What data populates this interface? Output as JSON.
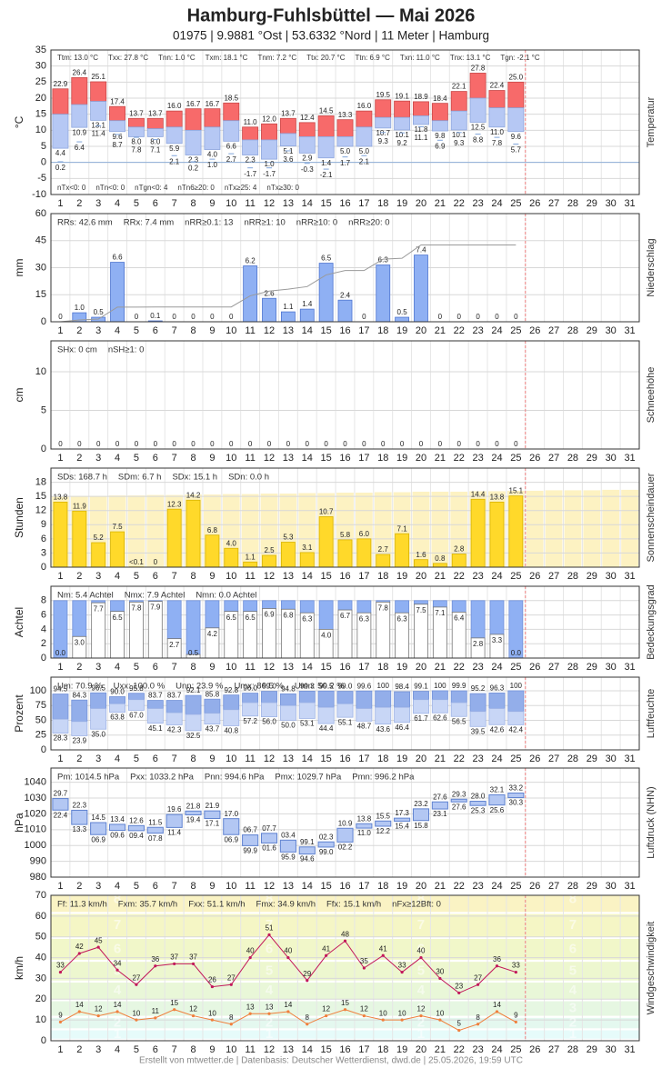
{
  "header": {
    "title": "Hamburg-Fuhlsbüttel  —  Mai 2026",
    "subtitle": "01975  |  9.9881 °Ost  |  53.6332 °Nord  |  11 Meter  |  Hamburg"
  },
  "footer": "Erstellt von mtwetter.de | Datenbasis: Deutscher Wetterdienst, dwd.de | 25.05.2026, 19:59 UTC",
  "chart_data": [
    {
      "type": "range",
      "ylabel": "°C",
      "side_label": "Temperatur",
      "categories": [
        "1",
        "2",
        "3",
        "4",
        "5",
        "6",
        "7",
        "8",
        "9",
        "10",
        "11",
        "12",
        "13",
        "14",
        "15",
        "16",
        "17",
        "18",
        "19",
        "20",
        "21",
        "22",
        "23",
        "24",
        "25",
        "26",
        "27",
        "28",
        "29",
        "30",
        "31"
      ],
      "ylim": [
        -10,
        35
      ],
      "yticks": [
        -10,
        -5,
        0,
        5,
        10,
        15,
        20,
        25,
        30,
        35
      ],
      "grid": true,
      "zero_line": "#8fb0d8",
      "summary": [
        "Ttm: 13.0 °C",
        "Txx: 27.8 °C",
        "Tnn: 1.0 °C",
        "Txm: 18.1 °C",
        "Tnm: 7.2 °C",
        "Ttx: 20.7 °C",
        "Ttn: 6.9 °C",
        "Txn: 11.0 °C",
        "Tnx: 13.1 °C",
        "Tgn: -2.1 °C"
      ],
      "summary_bottom": [
        "nTx<0: 0",
        "nTn<0: 0",
        "nTgn<0: 4",
        "nTn6≥20: 0",
        "nTx≥25: 4",
        "nTx≥30: 0"
      ],
      "max": {
        "color": "#f76a6a",
        "edge_color": "#c94848",
        "label_color": "#d04a4a",
        "values": [
          22.9,
          26.4,
          25.1,
          17.4,
          13.7,
          13.7,
          16.0,
          16.7,
          16.7,
          18.5,
          11.0,
          12.0,
          13.7,
          12.4,
          14.5,
          13.3,
          16.0,
          19.5,
          19.1,
          18.9,
          18.4,
          22.1,
          27.8,
          22.4,
          25.0
        ],
        "value_labels": [
          "22.9",
          "26.4",
          "25.1",
          "17.4",
          "13.7",
          "13.7",
          "16.0",
          "16.7",
          "16.7",
          "18.5",
          "11.0",
          "12.0",
          "13.7",
          "12.4",
          "14.5",
          "13.3",
          "16.0",
          "19.5",
          "19.1",
          "18.9",
          "18.4",
          "22.1",
          "27.8",
          "22.4",
          "25.0"
        ]
      },
      "mean": {
        "color": "#b6c8f4",
        "edge_color": "#8ea6dd",
        "values": [
          15,
          18,
          19,
          13,
          11,
          10.5,
          11,
          10,
          11,
          13,
          7,
          7,
          9,
          8,
          8,
          8,
          11,
          14,
          14,
          14.5,
          13,
          16,
          20,
          17,
          17
        ]
      },
      "min": {
        "label_color": "#4f73bd",
        "values": [
          4.4,
          10.9,
          13.1,
          9.6,
          8.0,
          8.0,
          5.9,
          2.3,
          4.0,
          6.6,
          2.3,
          1.0,
          5.1,
          2.9,
          1.4,
          5.0,
          5.0,
          10.7,
          10.1,
          11.8,
          9.8,
          10.1,
          12.5,
          11.0,
          9.6
        ],
        "value_labels": [
          "4.4",
          "10.9",
          "13.1",
          "9.6",
          "8.0",
          "8.0",
          "5.9",
          "2.3",
          "4.0",
          "6.6",
          "2.3",
          "1.0",
          "5.1",
          "2.9",
          "1.4",
          "5.0",
          "5.0",
          "10.7",
          "10.1",
          "11.8",
          "9.8",
          "10.1",
          "12.5",
          "11.0",
          "9.6"
        ]
      },
      "ground_min": {
        "color": "#7ea3d9",
        "values": [
          0.2,
          6.4,
          11.4,
          8.7,
          7.8,
          7.1,
          2.1,
          0.2,
          1.0,
          2.7,
          -1.7,
          -1.7,
          3.6,
          -0.3,
          -2.1,
          1.7,
          2.1,
          9.3,
          9.2,
          11.1,
          6.9,
          9.3,
          8.8,
          7.8,
          5.7
        ],
        "value_labels": [
          "0.2",
          "6.4",
          "11.4",
          "8.7",
          "7.8",
          "7.1",
          "2.1",
          "0.2",
          "1.0",
          "2.7",
          "-1.7",
          "-1.7",
          "3.6",
          "-0.3",
          "-2.1",
          "1.7",
          "2.1",
          "9.3",
          "9.2",
          "11.1",
          "6.9",
          "9.3",
          "8.8",
          "7.8",
          "5.7"
        ]
      }
    },
    {
      "type": "bar",
      "ylabel": "mm",
      "side_label": "Niederschlag",
      "ylim": [
        0,
        60
      ],
      "yticks": [
        0,
        15,
        30,
        45,
        60
      ],
      "y2lim": [
        0,
        12
      ],
      "grid": true,
      "summary": [
        "RRs: 42.6 mm",
        "RRx: 7.4 mm",
        "nRR≥0.1: 13",
        "nRR≥1: 10",
        "nRR≥10: 0",
        "nRR≥20: 0"
      ],
      "color": "#8fb0f3",
      "edge_color": "#4d74d0",
      "label_color": "#5a7fc8",
      "values": [
        0,
        1.0,
        0.5,
        6.6,
        0,
        0.1,
        0,
        0,
        0,
        0,
        6.2,
        2.6,
        1.1,
        1.4,
        6.5,
        2.4,
        0,
        6.3,
        0.5,
        7.4,
        0,
        0,
        0,
        0,
        0
      ],
      "value_labels": [
        "0",
        "1.0",
        "0.5",
        "6.6",
        "0",
        "0.1",
        "0",
        "0",
        "0",
        "0",
        "6.2",
        "2.6",
        "1.1",
        "1.4",
        "6.5",
        "2.4",
        "0",
        "6.3",
        "0.5",
        "7.4",
        "0",
        "0",
        "0",
        "0",
        "0"
      ],
      "cumulative": {
        "color": "#9a9a9a",
        "values": [
          0,
          1.0,
          1.5,
          8.1,
          8.1,
          8.2,
          8.2,
          8.2,
          8.2,
          8.2,
          14.4,
          17.0,
          18.1,
          19.5,
          26.0,
          28.4,
          28.4,
          34.7,
          35.2,
          42.6,
          42.6,
          42.6,
          42.6,
          42.6,
          42.6
        ]
      }
    },
    {
      "type": "bar",
      "ylabel": "cm",
      "side_label": "Schneehöhe",
      "ylim": [
        0,
        14
      ],
      "yticks": [
        0,
        5,
        10
      ],
      "grid": true,
      "summary": [
        "SHx: 0 cm",
        "nSH≥1: 0"
      ],
      "color": "#c8d4ee",
      "edge_color": "#8ea6dd",
      "label_color": "#999999",
      "values": [
        0,
        0,
        0,
        0,
        0,
        0,
        0,
        0,
        0,
        0,
        0,
        0,
        0,
        0,
        0,
        0,
        0,
        0,
        0,
        0,
        0,
        0,
        0,
        0,
        0
      ]
    },
    {
      "type": "bar",
      "ylabel": "Stunden",
      "side_label": "Sonnenscheindauer",
      "ylim": [
        0,
        21
      ],
      "yticks": [
        0,
        3,
        6,
        9,
        12,
        15,
        18
      ],
      "grid": true,
      "summary": [
        "SDs: 168.7 h",
        "SDm: 6.7 h",
        "SDx: 15.1 h",
        "SDn: 0.0 h"
      ],
      "color": "#ffd92a",
      "edge_color": "#d9b400",
      "label_color": "#9a7b00",
      "values": [
        13.8,
        11.9,
        5.2,
        7.5,
        0.05,
        0,
        12.3,
        14.2,
        6.8,
        4.0,
        1.1,
        2.5,
        5.3,
        3.1,
        10.7,
        5.8,
        6.0,
        2.7,
        7.1,
        1.6,
        0.8,
        2.8,
        14.4,
        13.8,
        15.1
      ],
      "value_labels": [
        "13.8",
        "11.9",
        "5.2",
        "7.5",
        "<0.1",
        "0",
        "12.3",
        "14.2",
        "6.8",
        "4.0",
        "1.1",
        "2.5",
        "5.3",
        "3.1",
        "10.7",
        "5.8",
        "6.0",
        "2.7",
        "7.1",
        "1.6",
        "0.8",
        "2.8",
        "14.4",
        "13.8",
        "15.1"
      ],
      "possible": {
        "color": "#fdf2c2",
        "values": [
          15.0,
          15.1,
          15.1,
          15.2,
          15.2,
          15.3,
          15.3,
          15.4,
          15.4,
          15.5,
          15.5,
          15.6,
          15.6,
          15.7,
          15.7,
          15.8,
          15.8,
          15.9,
          15.9,
          16.0,
          16.0,
          16.0,
          16.1,
          16.1,
          16.2,
          16.2,
          16.3,
          16.3,
          16.3,
          16.4,
          16.4
        ]
      }
    },
    {
      "type": "bar",
      "ylabel": "Achtel",
      "side_label": "Bedeckungsgrad",
      "ylim": [
        0,
        10
      ],
      "yticks": [
        0,
        2,
        4,
        6,
        8
      ],
      "grid": true,
      "summary": [
        "Nm: 5.4 Achtel",
        "Nmx: 7.9 Achtel",
        "Nmn: 0.0 Achtel"
      ],
      "color": "#ffffff",
      "edge_color": "#777777",
      "sky_color": "#8fb0f3",
      "label_color": "#333333",
      "values": [
        0.0,
        3.0,
        7.7,
        6.5,
        7.8,
        7.9,
        2.7,
        0.5,
        4.2,
        6.5,
        6.5,
        6.9,
        6.8,
        6.3,
        4.0,
        6.7,
        6.3,
        7.8,
        6.3,
        7.5,
        7.1,
        6.4,
        2.8,
        3.3,
        0.0
      ],
      "value_labels": [
        "0.0",
        "3.0",
        "7.7",
        "6.5",
        "7.8",
        "7.9",
        "2.7",
        "0.5",
        "4.2",
        "6.5",
        "6.5",
        "6.9",
        "6.8",
        "6.3",
        "4.0",
        "6.7",
        "6.3",
        "7.8",
        "6.3",
        "7.5",
        "7.1",
        "6.4",
        "2.8",
        "3.3",
        "0.0"
      ]
    },
    {
      "type": "range",
      "ylabel": "Prozent",
      "side_label": "Luftfeuchte",
      "ylim": [
        0,
        123
      ],
      "yticks": [
        0,
        25,
        50,
        75,
        100
      ],
      "grid": true,
      "summary": [
        "Um: 70.9 %",
        "Uxx: 100.0 %",
        "Unn: 23.9 %",
        "Umx: 86.5 %",
        "Umn: 50.2 %"
      ],
      "max": {
        "color": "#93aeea",
        "edge_color": "#7392d8",
        "label_color": "#7a95d0",
        "values": [
          94.5,
          84.3,
          96.5,
          90.0,
          95.8,
          83.7,
          83.7,
          92.1,
          85.8,
          92.8,
          96.0,
          99.0,
          94.8,
          99.3,
          99.5,
          99.0,
          99.6,
          100,
          98.4,
          99.1,
          100,
          99.9,
          95.2,
          96.3,
          100
        ],
        "value_labels": [
          "94.5",
          "84.3",
          "96.5",
          "90.0",
          "95.8",
          "83.7",
          "83.7",
          "92.1",
          "85.8",
          "92.8",
          "96.0",
          "99.0",
          "94.8",
          "99.3",
          "99.5",
          "99.0",
          "99.6",
          "100",
          "98.4",
          "99.1",
          "100",
          "99.9",
          "95.2",
          "96.3",
          "100"
        ]
      },
      "mean": {
        "color": "#c8d6f6",
        "edge_color": "#9fb4e6",
        "values": [
          52,
          48,
          70,
          78,
          85,
          70,
          63,
          60,
          62,
          68,
          80,
          80,
          75,
          80,
          72,
          78,
          70,
          72,
          72,
          85,
          85,
          80,
          65,
          70,
          65
        ]
      },
      "min": {
        "label_color": "#8aa2d6",
        "values": [
          28.3,
          23.9,
          35.0,
          63.8,
          67.0,
          45.1,
          42.3,
          32.5,
          43.7,
          40.8,
          57.2,
          56.0,
          50.0,
          53.1,
          44.4,
          55.1,
          48.7,
          43.6,
          46.4,
          61.7,
          62.6,
          56.5,
          39.5,
          42.6,
          42.4
        ],
        "value_labels": [
          "28.3",
          "23.9",
          "35.0",
          "63.8",
          "67.0",
          "45.1",
          "42.3",
          "32.5",
          "43.7",
          "40.8",
          "57.2",
          "56.0",
          "50.0",
          "53.1",
          "44.4",
          "55.1",
          "48.7",
          "43.6",
          "46.4",
          "61.7",
          "62.6",
          "56.5",
          "39.5",
          "42.6",
          "42.4"
        ]
      }
    },
    {
      "type": "range",
      "ylabel": "hPa",
      "side_label": "Luftdruck (NHN)",
      "ylim": [
        980,
        1049
      ],
      "yticks": [
        980,
        990,
        1000,
        1010,
        1020,
        1030,
        1040
      ],
      "grid": true,
      "summary": [
        "Pm: 1014.5 hPa",
        "Pxx: 1033.2 hPa",
        "Pnn: 994.6 hPa",
        "Pmx: 1029.7 hPa",
        "Pmn: 996.2 hPa"
      ],
      "max": {
        "color": "#b3c7f3",
        "edge_color": "#5f82d0",
        "label_color": "#5a7fc8",
        "values": [
          1029.7,
          1022.3,
          1014.5,
          1013.4,
          1012.6,
          1011.5,
          1019.6,
          1021.8,
          1021.9,
          1017.0,
          1006.7,
          1007.7,
          1003.4,
          999.1,
          1002.3,
          1010.9,
          1013.8,
          1015.5,
          1017.3,
          1023.2,
          1027.6,
          1029.3,
          1028.0,
          1032.1,
          1033.2
        ],
        "value_labels": [
          "29.7",
          "22.3",
          "14.5",
          "13.4",
          "12.6",
          "11.5",
          "19.6",
          "21.8",
          "21.9",
          "17.0",
          "06.7",
          "07.7",
          "03.4",
          "99.1",
          "02.3",
          "10.9",
          "13.8",
          "15.5",
          "17.3",
          "23.2",
          "27.6",
          "29.3",
          "28.0",
          "32.1",
          "33.2"
        ]
      },
      "min": {
        "label_color": "#8aa2d6",
        "values": [
          1022.4,
          1013.3,
          1006.9,
          1009.6,
          1009.4,
          1007.8,
          1011.4,
          1019.4,
          1017.1,
          1006.9,
          999.9,
          1001.6,
          995.9,
          994.6,
          999.0,
          1002.2,
          1011.0,
          1012.2,
          1015.4,
          1015.8,
          1023.1,
          1027.6,
          1025.3,
          1025.6,
          1030.3
        ],
        "value_labels": [
          "22.4",
          "13.3",
          "06.9",
          "09.6",
          "09.4",
          "07.8",
          "11.4",
          "19.4",
          "17.1",
          "06.9",
          "99.9",
          "01.6",
          "95.9",
          "94.6",
          "99.0",
          "02.2",
          "11.0",
          "12.2",
          "15.4",
          "15.8",
          "23.1",
          "27.6",
          "25.3",
          "25.6",
          "30.3"
        ]
      }
    },
    {
      "type": "line",
      "ylabel": "km/h",
      "side_label": "Windgeschwindigkeit",
      "ylim": [
        0,
        70
      ],
      "yticks": [
        0,
        10,
        20,
        30,
        40,
        50,
        60,
        70
      ],
      "grid": true,
      "summary": [
        "Ff: 11.3 km/h",
        "Fxm: 35.7 km/h",
        "Fxx: 51.1 km/h",
        "Fmx: 34.9 km/h",
        "Ffx: 15.1 km/h",
        "nFx≥12Bft: 0"
      ],
      "bands": [
        {
          "label": "1",
          "lo": 1,
          "hi": 5,
          "color": "#e6fbfa"
        },
        {
          "label": "2",
          "lo": 6,
          "hi": 11,
          "color": "#e4f8ef"
        },
        {
          "label": "3",
          "lo": 12,
          "hi": 19,
          "color": "#e6f7e2"
        },
        {
          "label": "4",
          "lo": 20,
          "hi": 28,
          "color": "#e9f7d8"
        },
        {
          "label": "5",
          "lo": 29,
          "hi": 38,
          "color": "#edf7cf"
        },
        {
          "label": "6",
          "lo": 39,
          "hi": 49,
          "color": "#f1f7c9"
        },
        {
          "label": "7",
          "lo": 50,
          "hi": 61,
          "color": "#f5f6c5"
        },
        {
          "label": "8",
          "lo": 62,
          "hi": 74,
          "color": "#faf3c4"
        }
      ],
      "series": [
        {
          "color": "#c2185b",
          "values": [
            33,
            42,
            45,
            34,
            27,
            36,
            37,
            37,
            26,
            27,
            40,
            51,
            40,
            29,
            41,
            48,
            35,
            41,
            33,
            40,
            30,
            23,
            27,
            36,
            33
          ]
        },
        {
          "color": "#f07f3c",
          "values": [
            9,
            14,
            12,
            14,
            10,
            11,
            15,
            12,
            10,
            8,
            13,
            13,
            14,
            8,
            12,
            15,
            12,
            10,
            10,
            12,
            10,
            5,
            8,
            14,
            9
          ]
        }
      ]
    }
  ]
}
